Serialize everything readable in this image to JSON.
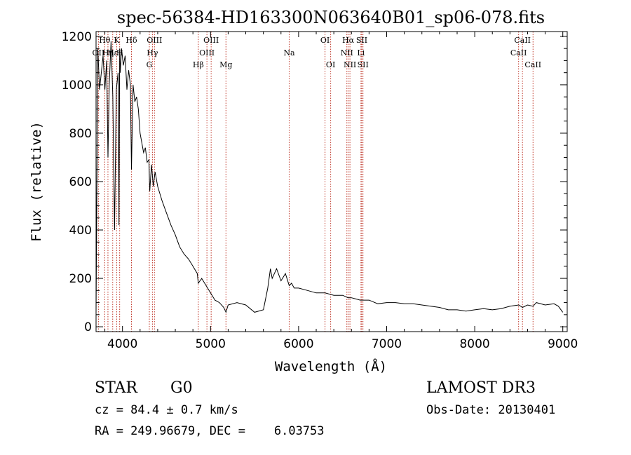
{
  "chart_data": {
    "type": "line",
    "title": "spec-56384-HD163300N063640B01_sp06-078.fits",
    "xlabel": "Wavelength (Å)",
    "ylabel": "Flux (relative)",
    "xlim": [
      3700,
      9050
    ],
    "ylim": [
      -20,
      1220
    ],
    "x_ticks": [
      4000,
      5000,
      6000,
      7000,
      8000,
      9000
    ],
    "y_ticks": [
      0,
      200,
      400,
      600,
      800,
      1000,
      1200
    ],
    "grid": false,
    "series": [
      {
        "x": [
          3700,
          3720,
          3740,
          3760,
          3780,
          3800,
          3820,
          3835,
          3850,
          3870,
          3890,
          3910,
          3930,
          3950,
          3960,
          3968,
          3975,
          3990,
          4010,
          4030,
          4050,
          4070,
          4090,
          4102,
          4120,
          4140,
          4160,
          4180,
          4200,
          4220,
          4240,
          4260,
          4280,
          4300,
          4310,
          4330,
          4350,
          4370,
          4400,
          4450,
          4500,
          4550,
          4600,
          4650,
          4700,
          4750,
          4800,
          4850,
          4861,
          4900,
          4950,
          5000,
          5050,
          5100,
          5150,
          5175,
          5200,
          5300,
          5400,
          5500,
          5600,
          5650,
          5680,
          5700,
          5750,
          5800,
          5850,
          5893,
          5920,
          5950,
          6000,
          6100,
          6200,
          6300,
          6400,
          6500,
          6563,
          6600,
          6700,
          6800,
          6900,
          7000,
          7100,
          7200,
          7300,
          7400,
          7500,
          7600,
          7700,
          7800,
          7900,
          8000,
          8100,
          8200,
          8300,
          8400,
          8500,
          8542,
          8600,
          8662,
          8700,
          8800,
          8900,
          8950,
          9000
        ],
        "y": [
          60,
          1150,
          980,
          1050,
          1120,
          980,
          1100,
          700,
          1000,
          1180,
          950,
          400,
          980,
          1050,
          420,
          1150,
          1050,
          1150,
          1080,
          1120,
          980,
          1060,
          1000,
          650,
          1000,
          930,
          950,
          900,
          800,
          760,
          720,
          740,
          680,
          690,
          560,
          670,
          580,
          640,
          580,
          520,
          470,
          420,
          380,
          330,
          300,
          280,
          250,
          220,
          180,
          200,
          170,
          140,
          110,
          100,
          80,
          60,
          90,
          100,
          90,
          60,
          70,
          160,
          240,
          200,
          240,
          190,
          220,
          170,
          180,
          160,
          160,
          150,
          140,
          140,
          130,
          130,
          120,
          120,
          110,
          110,
          95,
          100,
          100,
          95,
          95,
          90,
          85,
          80,
          70,
          70,
          65,
          70,
          75,
          70,
          75,
          85,
          90,
          80,
          90,
          85,
          100,
          90,
          95,
          85,
          60
        ]
      }
    ],
    "lines": [
      {
        "label": "Hθ",
        "x": 3798,
        "row": 0
      },
      {
        "label": "K",
        "x": 3934,
        "row": 0
      },
      {
        "label": "Hδ",
        "x": 4102,
        "row": 0
      },
      {
        "label": "OII",
        "x": 3727,
        "row": 1
      },
      {
        "label": "Hη",
        "x": 3835,
        "row": 1
      },
      {
        "label": "Hε",
        "x": 3889,
        "row": 1
      },
      {
        "label": "H",
        "x": 3968,
        "row": 1
      },
      {
        "label": "OIII",
        "x": 4363,
        "row": 0
      },
      {
        "label": "Hγ",
        "x": 4340,
        "row": 1
      },
      {
        "label": "G",
        "x": 4305,
        "row": 2
      },
      {
        "label": "Hβ",
        "x": 4861,
        "row": 2
      },
      {
        "label": "OIII",
        "x": 5007,
        "row": 0
      },
      {
        "label": "OIII",
        "x": 4959,
        "row": 1
      },
      {
        "label": "Mg",
        "x": 5175,
        "row": 2
      },
      {
        "label": "Na",
        "x": 5893,
        "row": 1
      },
      {
        "label": "OI",
        "x": 6300,
        "row": 0
      },
      {
        "label": "OI",
        "x": 6364,
        "row": 2
      },
      {
        "label": "Hα",
        "x": 6563,
        "row": 0
      },
      {
        "label": "SII",
        "x": 6717,
        "row": 0
      },
      {
        "label": "NII",
        "x": 6548,
        "row": 1
      },
      {
        "label": "Li",
        "x": 6708,
        "row": 1
      },
      {
        "label": "NII",
        "x": 6583,
        "row": 2
      },
      {
        "label": "SII",
        "x": 6731,
        "row": 2
      },
      {
        "label": "CaII",
        "x": 8542,
        "row": 0
      },
      {
        "label": "CaII",
        "x": 8498,
        "row": 1
      },
      {
        "label": "CaII",
        "x": 8662,
        "row": 2
      }
    ]
  },
  "info": {
    "class_label": "STAR",
    "subclass": "G0",
    "survey": "LAMOST DR3",
    "cz": "cz = 84.4 ± 0.7 km/s",
    "obs_date": "Obs-Date: 20130401",
    "coords": "RA = 249.96679, DEC =    6.03753"
  }
}
